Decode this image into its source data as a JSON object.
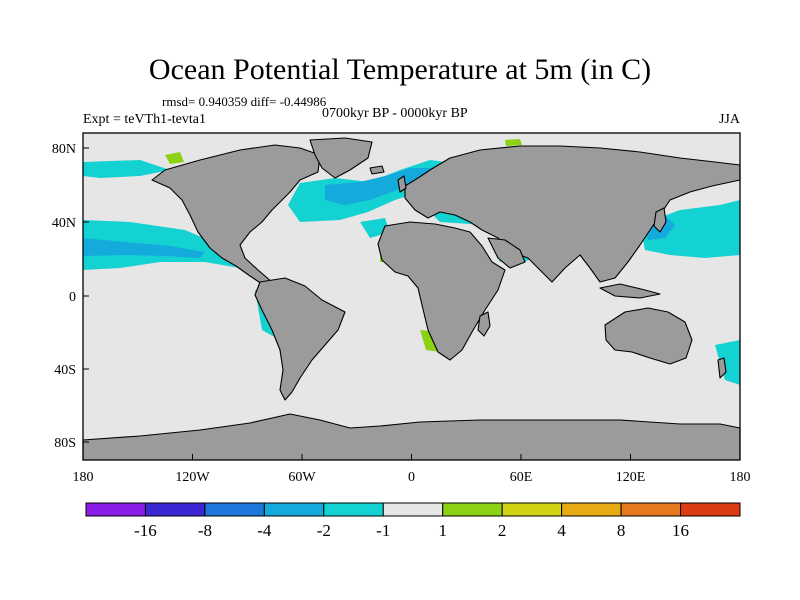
{
  "header": {
    "title": "Ocean Potential Temperature at 5m (in C)",
    "stats": "rmsd= 0.940359 diff= -0.44986",
    "experiment": "Expt = teVTh1-tevta1",
    "period": "0700kyr BP - 0000kyr BP",
    "season": "JJA"
  },
  "axes": {
    "x_ticks": [
      "180",
      "120W",
      "60W",
      "0",
      "60E",
      "120E",
      "180"
    ],
    "y_ticks": [
      "80N",
      "40N",
      "0",
      "40S",
      "80S"
    ]
  },
  "colors": {
    "land": "#9b9b9b",
    "neutral": "#e6e6e6",
    "coast": "#000000"
  },
  "colorbar": {
    "bins": [
      {
        "color": "#8a1ee6"
      },
      {
        "color": "#3c28d2"
      },
      {
        "color": "#1e78dc"
      },
      {
        "color": "#14aadc"
      },
      {
        "color": "#14d2d2"
      },
      {
        "color": "#e6e6e6"
      },
      {
        "color": "#8cd214"
      },
      {
        "color": "#d2d214"
      },
      {
        "color": "#e6aa14"
      },
      {
        "color": "#e6781e"
      },
      {
        "color": "#dc3c14"
      }
    ],
    "labels": [
      "-16",
      "-8",
      "-4",
      "-2",
      "-1",
      "1",
      "2",
      "4",
      "8",
      "16"
    ]
  }
}
